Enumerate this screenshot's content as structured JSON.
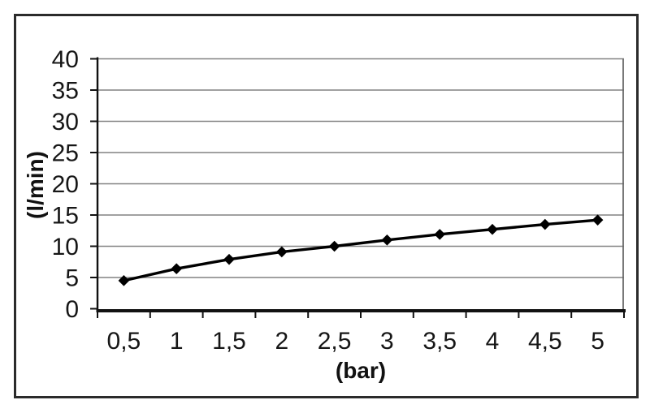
{
  "page": {
    "background_color": "#ffffff",
    "frame_color": "#2b2b2b"
  },
  "chart_data": {
    "type": "line",
    "title": "",
    "categories": [
      "0,5",
      "1",
      "1,5",
      "2",
      "2,5",
      "3",
      "3,5",
      "4",
      "4,5",
      "5"
    ],
    "x_numeric": [
      0.5,
      1,
      1.5,
      2,
      2.5,
      3,
      3.5,
      4,
      4.5,
      5
    ],
    "values": [
      4.5,
      6.4,
      7.9,
      9.1,
      10.0,
      11.0,
      11.9,
      12.7,
      13.5,
      14.2
    ],
    "xlabel": "(bar)",
    "ylabel": "(l/min)",
    "y_ticks": [
      0,
      5,
      10,
      15,
      20,
      25,
      30,
      35,
      40
    ],
    "ylim": [
      0,
      40
    ],
    "grid": "horizontal-only",
    "legend": "none",
    "marker": "diamond",
    "decimal_separator": ",",
    "colors": {
      "line": "#000000",
      "marker": "#000000",
      "grid": "#828282",
      "plot_border": "#6a6a6a",
      "axis": "#111111",
      "tick_text": "#161616"
    }
  }
}
